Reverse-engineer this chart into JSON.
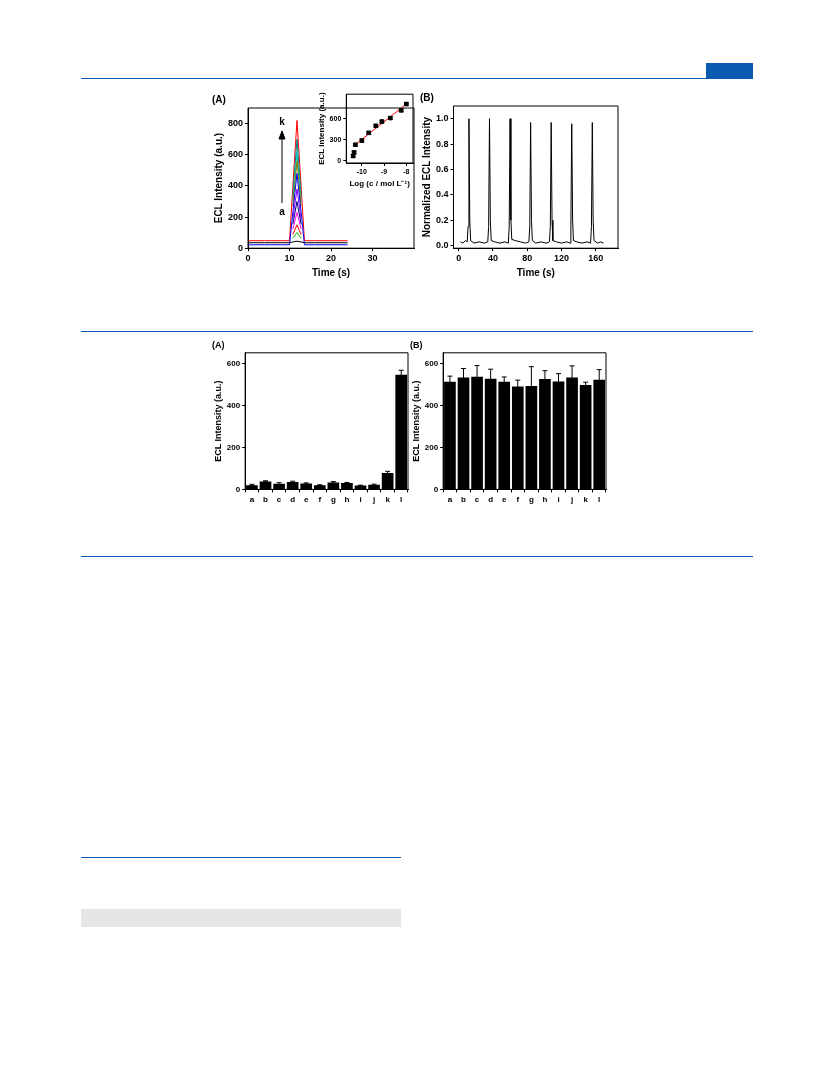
{
  "chart_data": [
    {
      "type": "line",
      "title": "(A)",
      "xlabel": "Time (s)",
      "ylabel": "ECL Intensity (a.u.)",
      "xlim": [
        0,
        40
      ],
      "xticks": [
        0,
        10,
        20,
        30
      ],
      "ylim": [
        0,
        900
      ],
      "yticks": [
        0,
        200,
        400,
        600,
        800
      ],
      "grid": false,
      "legend": false,
      "marker": "none",
      "x": [
        0,
        4,
        8,
        10,
        10.8,
        11.8,
        12.8,
        13.6,
        16,
        20,
        24
      ],
      "series": [
        {
          "color": "#000000",
          "values": [
            35,
            35,
            35,
            35,
            40,
            45,
            40,
            35,
            35,
            35,
            35
          ]
        },
        {
          "color": "#00c000",
          "values": [
            null,
            null,
            null,
            null,
            64,
            100,
            64,
            null,
            null,
            null,
            null
          ]
        },
        {
          "color": "#ff0000",
          "values": [
            null,
            null,
            null,
            null,
            87,
            150,
            87,
            null,
            null,
            null,
            null
          ]
        },
        {
          "color": "#ff00ff",
          "values": [
            null,
            null,
            null,
            null,
            123,
            230,
            123,
            null,
            null,
            null,
            null
          ]
        },
        {
          "color": "#000080",
          "values": [
            null,
            null,
            null,
            null,
            154,
            300,
            154,
            null,
            null,
            null,
            null
          ]
        },
        {
          "color": "#8000ff",
          "values": [
            null,
            null,
            null,
            null,
            190,
            380,
            190,
            null,
            null,
            null,
            null
          ]
        },
        {
          "color": "#0000ff",
          "values": [
            22,
            22,
            22,
            22,
            230,
            480,
            230,
            22,
            22,
            22,
            22
          ]
        },
        {
          "color": "#808000",
          "values": [
            null,
            null,
            null,
            null,
            271,
            560,
            271,
            null,
            null,
            null,
            null
          ]
        },
        {
          "color": "#00c0c0",
          "values": [
            null,
            null,
            null,
            null,
            298,
            620,
            298,
            null,
            null,
            null,
            null
          ]
        },
        {
          "color": "#008080",
          "values": [
            null,
            null,
            null,
            null,
            334,
            700,
            334,
            null,
            null,
            null,
            null
          ]
        },
        {
          "color": "#ff0000",
          "values": [
            48,
            48,
            48,
            48,
            395,
            820,
            395,
            48,
            48,
            48,
            48
          ]
        }
      ],
      "annotations": [
        "k",
        "a"
      ]
    },
    {
      "type": "scatter",
      "xlabel": "Log (c / mol L⁻¹)",
      "ylabel": "ECL Intensity (a.u.)",
      "xlim": [
        -10.7,
        -7.7
      ],
      "xticks": [
        -10,
        -9,
        -8
      ],
      "ylim": [
        -30,
        950
      ],
      "yticks": [
        0,
        300,
        600
      ],
      "grid": false,
      "legend": false,
      "marker": "square",
      "series": [
        {
          "type": "scatter",
          "color": "#000000",
          "x": [
            -10.39,
            -10.35,
            -10.29,
            -10.0,
            -9.69,
            -9.37,
            -9.1,
            -8.72,
            -8.23,
            -8.0
          ],
          "values": [
            70,
            120,
            230,
            290,
            400,
            500,
            560,
            610,
            720,
            810
          ],
          "errors": [
            20,
            20,
            20,
            20,
            20,
            20,
            20,
            20,
            20,
            20
          ]
        },
        {
          "type": "line",
          "color": "#ff0000",
          "marker": "none",
          "x": [
            -10.3,
            -8.0
          ],
          "values": [
            230,
            810
          ]
        }
      ]
    },
    {
      "type": "line",
      "title": "(B)",
      "xlabel": "Time (s)",
      "ylabel": "Normalized ECL Intensity",
      "xlim": [
        -6,
        186
      ],
      "xticks": [
        0,
        40,
        80,
        120,
        160
      ],
      "ylim": [
        -0.02,
        1.1
      ],
      "yticks": [
        {
          "value": 0,
          "label": "0.0"
        },
        0.2,
        0.4,
        0.6,
        0.8,
        {
          "value": 1,
          "label": "1.0"
        }
      ],
      "grid": false,
      "legend": false,
      "marker": "none",
      "series": [
        {
          "color": "#000000",
          "x": [
            2,
            5,
            8,
            10,
            11,
            12,
            13,
            14,
            18,
            24,
            30,
            34,
            35,
            36,
            37,
            38,
            42,
            48,
            54,
            58,
            59,
            60,
            61,
            62,
            66,
            72,
            78,
            82,
            83,
            84,
            85,
            86,
            90,
            96,
            102,
            106,
            107,
            108,
            109,
            110,
            114,
            120,
            126,
            130,
            131,
            132,
            133,
            134,
            138,
            144,
            150,
            154,
            155,
            156,
            157,
            158,
            162,
            166,
            169
          ],
          "values": [
            0.03,
            0.02,
            0.04,
            0.03,
            0.15,
            1.0,
            0.2,
            0.04,
            0.02,
            0.03,
            0.02,
            0.03,
            0.15,
            1.0,
            0.2,
            0.04,
            0.03,
            0.02,
            0.03,
            0.02,
            0.15,
            1.0,
            0.2,
            0.05,
            0.04,
            0.03,
            0.02,
            0.03,
            0.15,
            0.97,
            0.2,
            0.04,
            0.02,
            0.03,
            0.02,
            0.03,
            0.15,
            0.97,
            0.2,
            0.04,
            0.03,
            0.02,
            0.03,
            0.02,
            0.15,
            0.96,
            0.2,
            0.04,
            0.03,
            0.02,
            0.03,
            0.02,
            0.15,
            0.97,
            0.2,
            0.04,
            0.02,
            0.03,
            0.02
          ]
        }
      ]
    },
    {
      "type": "bar",
      "title": "(A)",
      "ylabel": "ECL Intensity (a.u.)",
      "categories": [
        "a",
        "b",
        "c",
        "d",
        "e",
        "f",
        "g",
        "h",
        "i",
        "j",
        "k",
        "l"
      ],
      "ylim": [
        0,
        650
      ],
      "yticks": [
        0,
        200,
        400,
        600
      ],
      "grid": false,
      "legend": false,
      "color": "#000000",
      "values": [
        20,
        38,
        27,
        35,
        28,
        20,
        33,
        30,
        18,
        22,
        78,
        545
      ],
      "errors": [
        4,
        3,
        5,
        4,
        3,
        2,
        4,
        3,
        2,
        3,
        8,
        22
      ]
    },
    {
      "type": "bar",
      "title": "(B)",
      "ylabel": "ECL Intensity (a.u.)",
      "categories": [
        "a",
        "b",
        "c",
        "d",
        "e",
        "f",
        "g",
        "h",
        "i",
        "j",
        "k",
        "l"
      ],
      "ylim": [
        0,
        650
      ],
      "yticks": [
        0,
        200,
        400,
        600
      ],
      "grid": false,
      "legend": false,
      "color": "#000000",
      "values": [
        512,
        532,
        536,
        527,
        512,
        490,
        492,
        525,
        513,
        533,
        497,
        522
      ],
      "errors": [
        27,
        43,
        53,
        45,
        23,
        30,
        92,
        40,
        38,
        55,
        13,
        48
      ]
    }
  ]
}
